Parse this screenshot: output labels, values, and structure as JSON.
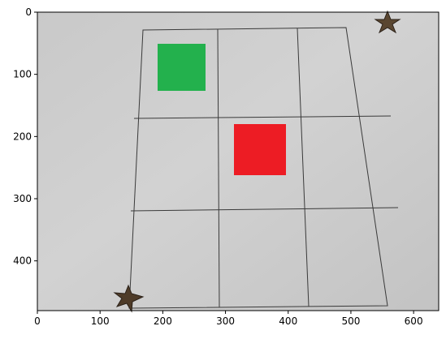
{
  "axes": {
    "x_range": [
      0,
      640
    ],
    "y_range": [
      480,
      0
    ],
    "x_ticks": [
      0,
      100,
      200,
      300,
      400,
      500,
      600
    ],
    "y_ticks": [
      0,
      100,
      200,
      300,
      400
    ],
    "x_tick_labels": [
      "0",
      "100",
      "200",
      "300",
      "400",
      "500",
      "600"
    ],
    "y_tick_labels": [
      "0",
      "100",
      "200",
      "300",
      "400"
    ]
  },
  "image": {
    "description_colors": {
      "paper": "#cfcfcf",
      "grid_line": "#3a3a3a",
      "green_square": "#23b14d",
      "red_square": "#ed1c24",
      "star_marker": "#5a4630"
    }
  }
}
